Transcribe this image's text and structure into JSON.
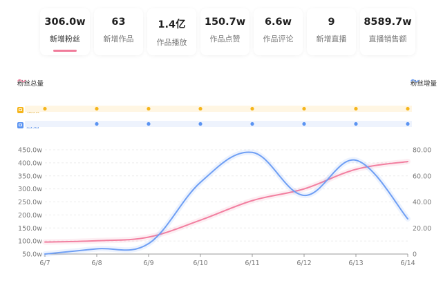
{
  "stats": [
    {
      "value": "306.0w",
      "label": "新增粉丝",
      "active": true
    },
    {
      "value": "63",
      "label": "新增作品"
    },
    {
      "value": "1.4亿",
      "label": "作品播放"
    },
    {
      "value": "150.7w",
      "label": "作品点赞"
    },
    {
      "value": "6.6w",
      "label": "作品评论"
    },
    {
      "value": "9",
      "label": "新增直播"
    },
    {
      "value": "8589.7w",
      "label": "直播销售额"
    }
  ],
  "legend": {
    "left": "粉丝总量",
    "right": "粉丝增量"
  },
  "tracks": {
    "video_label": "视频",
    "live_label": "直播"
  },
  "colors": {
    "total_series": "#f27fa0",
    "increment_series": "#6f9ff4",
    "video": "#f5b51b",
    "live": "#5b94f2",
    "active_underline": "#f07c9b"
  },
  "chart_data": {
    "type": "line",
    "x": [
      "6/7",
      "6/8",
      "6/9",
      "6/10",
      "6/11",
      "6/12",
      "6/13",
      "6/14"
    ],
    "left_axis": {
      "ticks": [
        "50.0w",
        "100.0w",
        "150.0w",
        "200.0w",
        "250.0w",
        "300.0w",
        "350.0w",
        "400.0w",
        "450.0w"
      ],
      "ylim": [
        50,
        450
      ]
    },
    "right_axis": {
      "ticks": [
        "0",
        "20.00",
        "40.00",
        "60.00",
        "80.00"
      ],
      "ylim": [
        0,
        80
      ]
    },
    "series": [
      {
        "name": "粉丝总量",
        "axis": "left",
        "values": [
          96,
          101,
          115,
          180,
          255,
          300,
          375,
          405
        ]
      },
      {
        "name": "粉丝增量",
        "axis": "right",
        "values": [
          0,
          4,
          8,
          55,
          78,
          45,
          72,
          27
        ]
      }
    ],
    "video_markers": [
      "6/7",
      "6/8",
      "6/9",
      "6/10",
      "6/11",
      "6/12",
      "6/13",
      "6/14"
    ],
    "live_markers": [
      "6/8",
      "6/9",
      "6/10",
      "6/11",
      "6/12",
      "6/13",
      "6/14"
    ],
    "grid": true
  }
}
